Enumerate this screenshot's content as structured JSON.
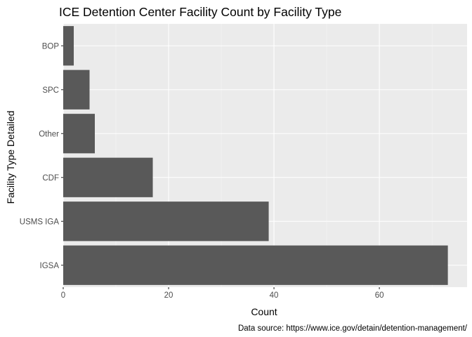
{
  "chart_data": {
    "type": "bar",
    "orientation": "horizontal",
    "title": "ICE Detention Center Facility Count by Facility Type",
    "xlabel": "Count",
    "ylabel": "Facility Type Detailed",
    "caption": "Data source: https://www.ice.gov/detain/detention-management/",
    "categories": [
      "IGSA",
      "USMS IGA",
      "CDF",
      "Other",
      "SPC",
      "BOP"
    ],
    "values": [
      73,
      39,
      17,
      6,
      5,
      2
    ],
    "xlim": [
      0,
      76.65
    ],
    "x_ticks": [
      0,
      20,
      40,
      60
    ],
    "x_tick_labels": [
      "0",
      "20",
      "40",
      "60"
    ],
    "grid": true,
    "colors": {
      "panel_background": "#ebebeb",
      "grid_major": "#ffffff",
      "grid_minor": "#f5f5f5",
      "bar_fill": "#595959",
      "tick": "#333333",
      "tick_label": "#4d4d4d",
      "text": "#000000"
    }
  }
}
